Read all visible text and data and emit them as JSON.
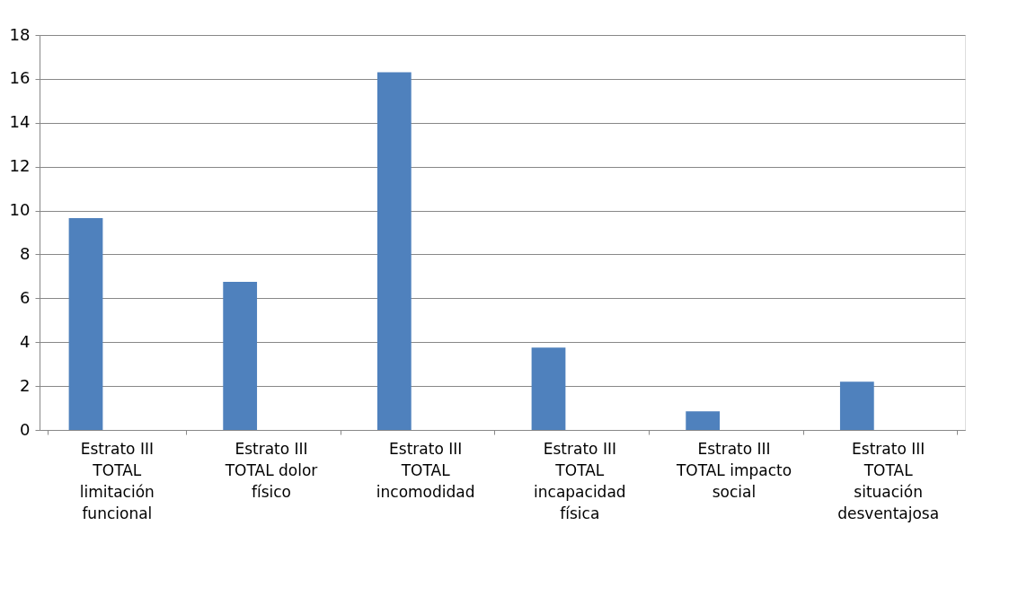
{
  "chart_data": {
    "type": "bar",
    "categories": [
      "Estrato III TOTAL limitación funcional",
      "Estrato III TOTAL dolor físico",
      "Estrato III TOTAL incomodidad",
      "Estrato III TOTAL incapacidad física",
      "Estrato III TOTAL impacto social",
      "Estrato III TOTAL situación desventajosa"
    ],
    "values": [
      9.65,
      6.75,
      16.3,
      3.75,
      0.85,
      2.2
    ],
    "color": "#4f81bd",
    "ylim": [
      0,
      18
    ],
    "yticks": [
      0,
      2,
      4,
      6,
      8,
      10,
      12,
      14,
      16,
      18
    ],
    "grid": "y"
  }
}
